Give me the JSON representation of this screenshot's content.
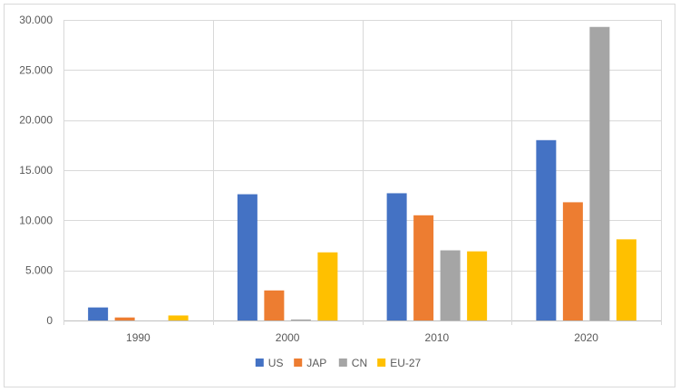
{
  "chart_data": {
    "type": "bar",
    "title": "",
    "xlabel": "",
    "ylabel": "",
    "categories": [
      "1990",
      "2000",
      "2010",
      "2020"
    ],
    "series": [
      {
        "name": "US",
        "color": "#4472c4",
        "values": [
          1300,
          12600,
          12700,
          18000
        ]
      },
      {
        "name": "JAP",
        "color": "#ed7d31",
        "values": [
          300,
          3000,
          10500,
          11800
        ]
      },
      {
        "name": "CN",
        "color": "#a5a5a5",
        "values": [
          0,
          100,
          7000,
          29300
        ]
      },
      {
        "name": "EU-27",
        "color": "#ffc000",
        "values": [
          500,
          6800,
          6900,
          8100
        ]
      }
    ],
    "ylim": [
      0,
      30000
    ],
    "yticks": [
      0,
      5000,
      10000,
      15000,
      20000,
      25000,
      30000
    ],
    "ytick_labels": [
      "0",
      "5.000",
      "10.000",
      "15.000",
      "20.000",
      "25.000",
      "30.000"
    ],
    "grid": "horizontal and vertical category dividers",
    "legend_position": "bottom"
  }
}
